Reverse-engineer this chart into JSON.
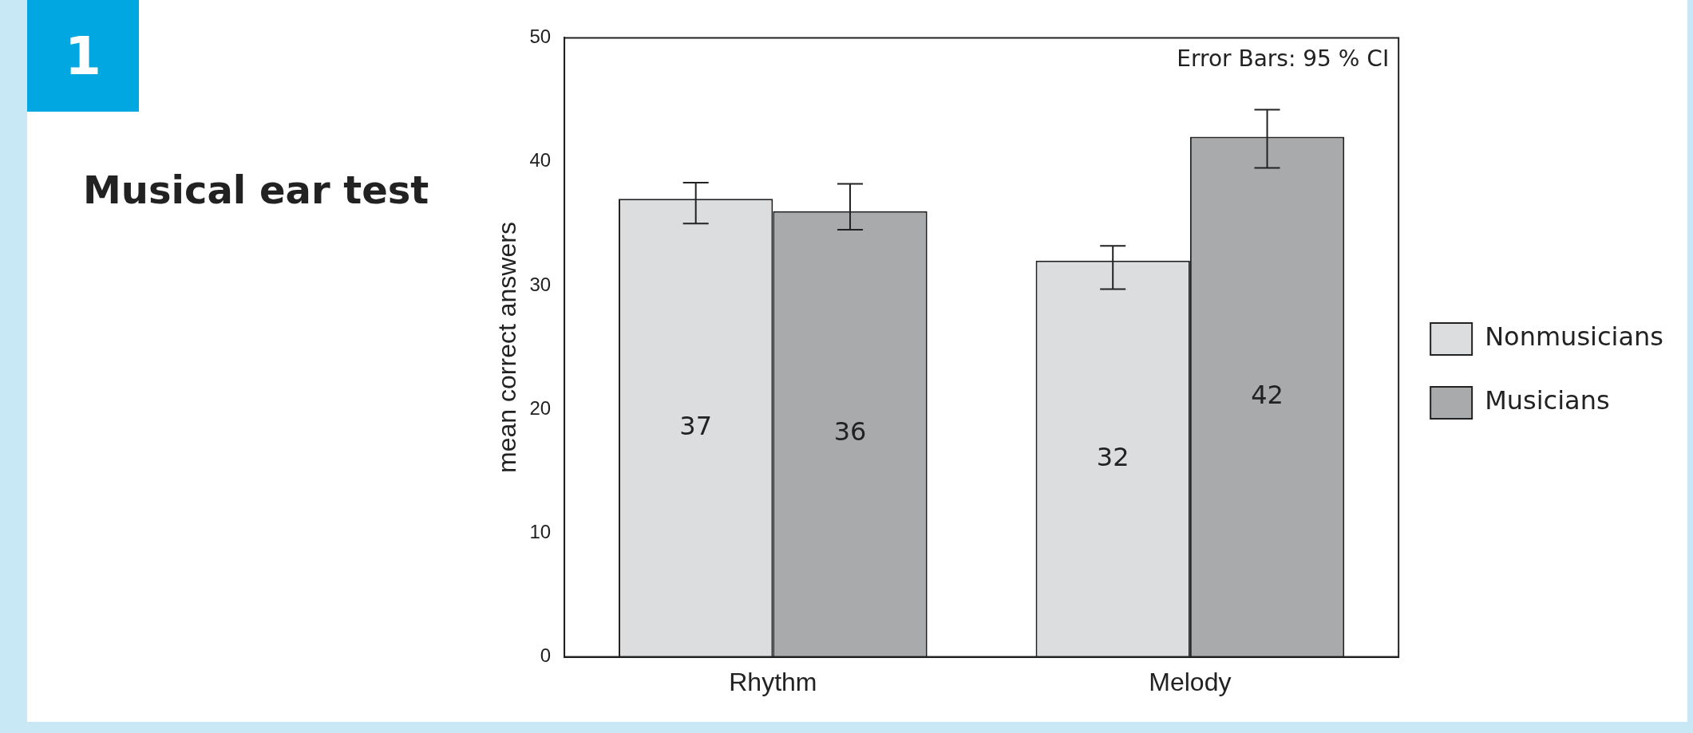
{
  "chart_data": {
    "type": "bar",
    "title": "Musical ear test",
    "ylabel": "mean correct answers",
    "categories": [
      "Rhythm",
      "Melody"
    ],
    "series": [
      {
        "name": "Nonmusicians",
        "color": "#dcdddf",
        "values": [
          37,
          32
        ],
        "errors": [
          [
            35.0,
            38.3
          ],
          [
            29.7,
            33.2
          ]
        ]
      },
      {
        "name": "Musicians",
        "color": "#a9aaac",
        "values": [
          36,
          42
        ],
        "errors": [
          [
            34.5,
            38.2
          ],
          [
            39.5,
            44.2
          ]
        ]
      }
    ],
    "ylim": [
      0,
      50
    ],
    "yticks": [
      0,
      10,
      20,
      30,
      40,
      50
    ],
    "grid": false,
    "legend": "right",
    "data_labels": true,
    "annotations": [
      "1",
      "Error Bars: 95 % CI"
    ]
  }
}
